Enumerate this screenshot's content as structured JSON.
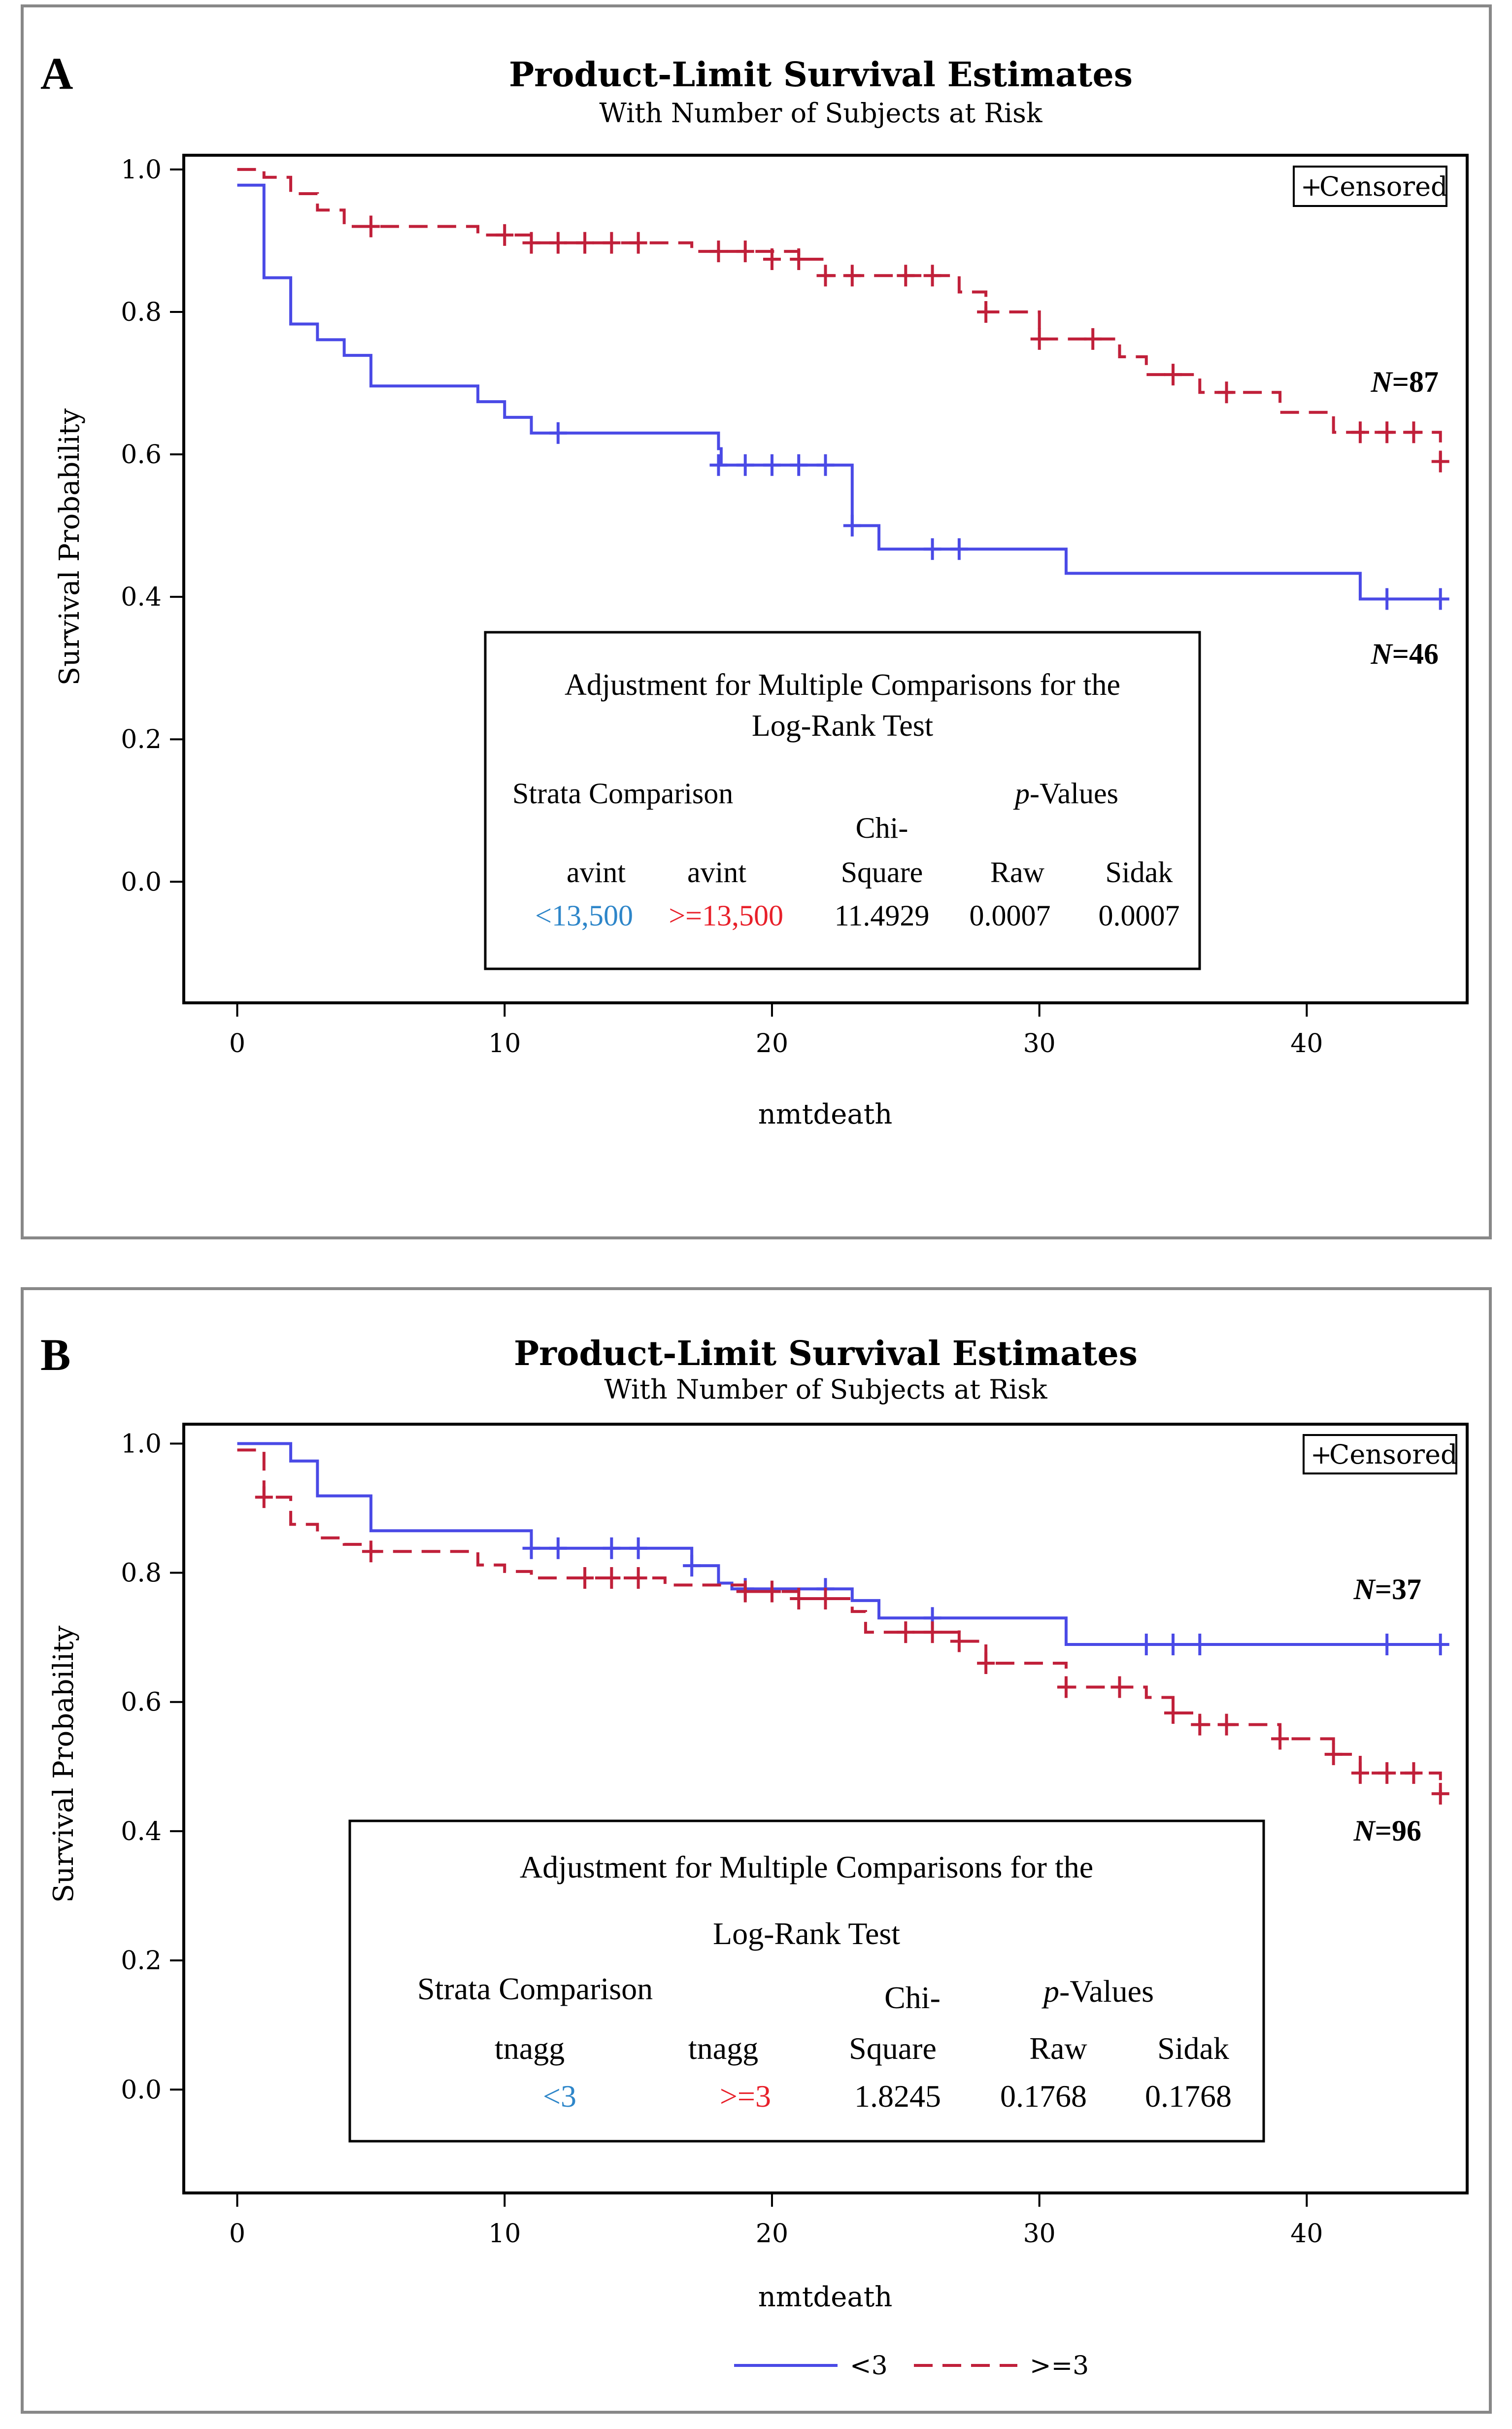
{
  "panels": [
    {
      "panel_label": "A",
      "title": "Product-Limit Survival Estimates",
      "subtitle": "With Number of Subjects at Risk",
      "legend_box": "Censored",
      "censor_symbol": "+",
      "group_labels": [
        {
          "prefix": "N",
          "value": "=87"
        },
        {
          "prefix": "N",
          "value": "=46"
        }
      ],
      "table": {
        "title_line1": "Adjustment  for Multiple Comparisons for the",
        "title_line2": "Log-Rank Test",
        "strata_header": "Strata Comparison",
        "pvalues_italic": "p",
        "pvalues_rest": "-Values",
        "chi_top": "Chi-",
        "col_headers": [
          "avint",
          "avint",
          "Square",
          "Raw",
          "Sidak"
        ],
        "row": [
          "<13,500",
          ">=13,500",
          "11.4929",
          "0.0007",
          "0.0007"
        ]
      }
    },
    {
      "panel_label": "B",
      "title": "Product-Limit Survival Estimates",
      "subtitle": "With Number of Subjects at Risk",
      "legend_box": "Censored",
      "censor_symbol": "+",
      "group_labels": [
        {
          "prefix": "N",
          "value": "=37"
        },
        {
          "prefix": "N",
          "value": "=96"
        }
      ],
      "table": {
        "title_line1": "Adjustment  for Multiple Comparisons for the",
        "title_line2": "Log-Rank Test",
        "strata_header": "Strata Comparison",
        "pvalues_italic": "p",
        "pvalues_rest": "-Values",
        "chi_top": "Chi-",
        "col_headers": [
          "tnagg",
          "tnagg",
          "Square",
          "Raw",
          "Sidak"
        ],
        "row": [
          "<3",
          ">=3",
          "1.8245",
          "0.1768",
          "0.1768"
        ]
      },
      "legend": [
        {
          "label": "<3",
          "color": "#4a4ae6",
          "dash": "solid"
        },
        {
          "label": ">=3",
          "color": "#c0203a",
          "dash": "dashed"
        }
      ]
    }
  ],
  "colors": {
    "group1": "#4a4ae6",
    "group2": "#c0203a",
    "cell_blue": "#2e86c9",
    "cell_red": "#e8202a"
  },
  "chart_data": [
    {
      "type": "line",
      "title": "Product-Limit Survival Estimates",
      "subtitle": "With Number of Subjects at Risk",
      "xlabel": "nmtdeath",
      "ylabel": "Survival Probability",
      "xlim": [
        -2,
        46
      ],
      "ylim": [
        -0.17,
        1.02
      ],
      "xticks": [
        0,
        10,
        20,
        30,
        40
      ],
      "xtick_labels": [
        "0",
        "10",
        "20",
        "30",
        "40"
      ],
      "yticks": [
        0,
        0.2,
        0.4,
        0.6,
        0.8,
        1.0
      ],
      "ytick_labels": [
        "0.0",
        "0.2",
        "0.4",
        "0.6",
        "0.8",
        "1.0"
      ],
      "series": [
        {
          "name": "<13,500",
          "style": "solid",
          "steps": [
            [
              0,
              0.978
            ],
            [
              1,
              0.848
            ],
            [
              2,
              0.783
            ],
            [
              3,
              0.761
            ],
            [
              4,
              0.739
            ],
            [
              5,
              0.696
            ],
            [
              9,
              0.674
            ],
            [
              10,
              0.652
            ],
            [
              11,
              0.63
            ],
            [
              18,
              0.608
            ],
            [
              18.1,
              0.585
            ],
            [
              23,
              0.5
            ],
            [
              24,
              0.467
            ],
            [
              31,
              0.433
            ],
            [
              42,
              0.397
            ],
            [
              45,
              0.397
            ]
          ],
          "censored": [
            [
              12,
              0.63
            ],
            [
              18,
              0.585
            ],
            [
              19,
              0.585
            ],
            [
              20,
              0.585
            ],
            [
              21,
              0.585
            ],
            [
              22,
              0.585
            ],
            [
              23,
              0.5
            ],
            [
              26,
              0.467
            ],
            [
              27,
              0.467
            ],
            [
              43,
              0.397
            ],
            [
              45,
              0.397
            ]
          ]
        },
        {
          "name": ">=13,500",
          "style": "dashed",
          "steps": [
            [
              0,
              1.0
            ],
            [
              1,
              0.989
            ],
            [
              2,
              0.966
            ],
            [
              3,
              0.943
            ],
            [
              4,
              0.92
            ],
            [
              9,
              0.908
            ],
            [
              11,
              0.897
            ],
            [
              17,
              0.885
            ],
            [
              21,
              0.874
            ],
            [
              22,
              0.851
            ],
            [
              27,
              0.828
            ],
            [
              28,
              0.8
            ],
            [
              30,
              0.762
            ],
            [
              33,
              0.737
            ],
            [
              34,
              0.712
            ],
            [
              36,
              0.687
            ],
            [
              39,
              0.659
            ],
            [
              41,
              0.631
            ],
            [
              45,
              0.59
            ]
          ],
          "censored": [
            [
              5,
              0.92
            ],
            [
              10,
              0.908
            ],
            [
              11,
              0.897
            ],
            [
              12,
              0.897
            ],
            [
              13,
              0.897
            ],
            [
              14,
              0.897
            ],
            [
              15,
              0.897
            ],
            [
              18,
              0.885
            ],
            [
              19,
              0.885
            ],
            [
              20,
              0.874
            ],
            [
              21,
              0.874
            ],
            [
              22,
              0.851
            ],
            [
              23,
              0.851
            ],
            [
              25,
              0.851
            ],
            [
              26,
              0.851
            ],
            [
              28,
              0.8
            ],
            [
              30,
              0.762
            ],
            [
              32,
              0.762
            ],
            [
              35,
              0.712
            ],
            [
              37,
              0.687
            ],
            [
              42,
              0.631
            ],
            [
              43,
              0.631
            ],
            [
              44,
              0.631
            ],
            [
              45,
              0.59
            ]
          ]
        }
      ]
    },
    {
      "type": "line",
      "title": "Product-Limit Survival Estimates",
      "subtitle": "With Number of Subjects at Risk",
      "xlabel": "nmtdeath",
      "ylabel": "Survival Probability",
      "xlim": [
        -2,
        46
      ],
      "ylim": [
        -0.16,
        1.03
      ],
      "xticks": [
        0,
        10,
        20,
        30,
        40
      ],
      "xtick_labels": [
        "0",
        "10",
        "20",
        "30",
        "40"
      ],
      "yticks": [
        0,
        0.2,
        0.4,
        0.6,
        0.8,
        1.0
      ],
      "ytick_labels": [
        "0.0",
        "0.2",
        "0.4",
        "0.6",
        "0.8",
        "1.0"
      ],
      "series": [
        {
          "name": "<3",
          "style": "solid",
          "steps": [
            [
              0,
              1.0
            ],
            [
              2,
              0.973
            ],
            [
              3,
              0.919
            ],
            [
              5,
              0.865
            ],
            [
              11,
              0.838
            ],
            [
              17,
              0.811
            ],
            [
              18,
              0.784
            ],
            [
              18.5,
              0.775
            ],
            [
              23,
              0.757
            ],
            [
              24,
              0.73
            ],
            [
              31,
              0.689
            ],
            [
              45,
              0.689
            ]
          ],
          "censored": [
            [
              11,
              0.838
            ],
            [
              12,
              0.838
            ],
            [
              14,
              0.838
            ],
            [
              15,
              0.838
            ],
            [
              17,
              0.811
            ],
            [
              19,
              0.775
            ],
            [
              22,
              0.775
            ],
            [
              26,
              0.73
            ],
            [
              34,
              0.689
            ],
            [
              35,
              0.689
            ],
            [
              36,
              0.689
            ],
            [
              43,
              0.689
            ],
            [
              45,
              0.689
            ]
          ]
        },
        {
          "name": ">=3",
          "style": "dashed",
          "steps": [
            [
              0,
              0.99
            ],
            [
              1,
              0.917
            ],
            [
              2,
              0.875
            ],
            [
              3,
              0.854
            ],
            [
              4,
              0.844
            ],
            [
              5,
              0.833
            ],
            [
              9,
              0.812
            ],
            [
              10,
              0.802
            ],
            [
              11,
              0.792
            ],
            [
              16,
              0.781
            ],
            [
              19,
              0.771
            ],
            [
              21,
              0.76
            ],
            [
              23,
              0.74
            ],
            [
              23.5,
              0.708
            ],
            [
              27,
              0.694
            ],
            [
              28,
              0.66
            ],
            [
              31,
              0.623
            ],
            [
              34,
              0.607
            ],
            [
              35,
              0.583
            ],
            [
              36,
              0.565
            ],
            [
              39,
              0.543
            ],
            [
              41,
              0.519
            ],
            [
              42,
              0.49
            ],
            [
              45,
              0.458
            ]
          ],
          "censored": [
            [
              1,
              0.917
            ],
            [
              5,
              0.833
            ],
            [
              13,
              0.792
            ],
            [
              14,
              0.792
            ],
            [
              15,
              0.792
            ],
            [
              19,
              0.771
            ],
            [
              20,
              0.771
            ],
            [
              21,
              0.76
            ],
            [
              22,
              0.76
            ],
            [
              25,
              0.708
            ],
            [
              26,
              0.708
            ],
            [
              27,
              0.694
            ],
            [
              28,
              0.66
            ],
            [
              31,
              0.623
            ],
            [
              33,
              0.623
            ],
            [
              35,
              0.583
            ],
            [
              36,
              0.565
            ],
            [
              37,
              0.565
            ],
            [
              39,
              0.543
            ],
            [
              41,
              0.519
            ],
            [
              42,
              0.49
            ],
            [
              43,
              0.49
            ],
            [
              44,
              0.49
            ],
            [
              45,
              0.458
            ]
          ]
        }
      ]
    }
  ]
}
